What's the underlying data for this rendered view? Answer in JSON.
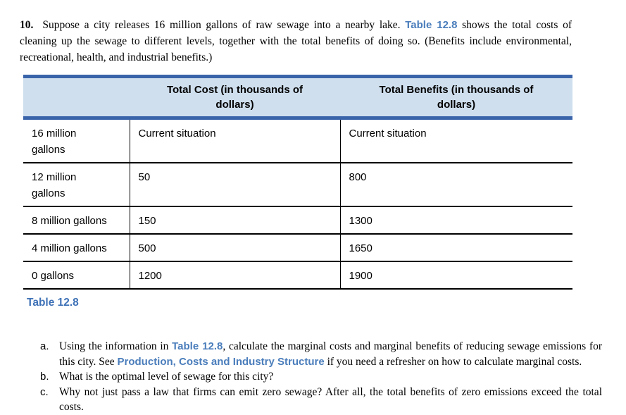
{
  "colors": {
    "link_blue": "#4a7dbb",
    "caption_blue": "#3f72b7",
    "table_border_blue": "#3a64aa",
    "table_header_bg": "#cfdfee",
    "row_line_black": "#000000"
  },
  "problem": {
    "number": "10.",
    "text_before_link": "Suppose a city releases 16 million gallons of raw sewage into a nearby lake. ",
    "link_label": "Table 12.8",
    "text_after_link": " shows the total costs of cleaning up the sewage to different levels, together with the total benefits of doing so. (Benefits include environmental, recreational, health, and industrial benefits.)"
  },
  "table": {
    "caption": "Table 12.8",
    "columns": [
      "",
      "Total Cost (in thousands of dollars)",
      "Total Benefits (in thousands of dollars)"
    ],
    "rows": [
      {
        "label": "16 million gallons",
        "cost": "Current situation",
        "benefits": "Current situation"
      },
      {
        "label": "12 million gallons",
        "cost": "50",
        "benefits": "800"
      },
      {
        "label": "8 million gallons",
        "cost": "150",
        "benefits": "1300"
      },
      {
        "label": "4 million gallons",
        "cost": "500",
        "benefits": "1650"
      },
      {
        "label": "0 gallons",
        "cost": "1200",
        "benefits": "1900"
      }
    ]
  },
  "questions": {
    "a": {
      "marker": "a.",
      "part1": "Using the information in ",
      "link1": "Table 12.8",
      "part2": ", calculate the marginal costs and marginal benefits of reducing sewage emissions for this city. See ",
      "link2": "Production, Costs and Industry Structure",
      "part3": " if you need a refresher on how to calculate marginal costs."
    },
    "b": {
      "marker": "b.",
      "text": "What is the optimal level of sewage for this city?"
    },
    "c": {
      "marker": "c.",
      "text": "Why not just pass a law that firms can emit zero sewage? After all, the total benefits of zero emissions exceed the total costs."
    }
  }
}
